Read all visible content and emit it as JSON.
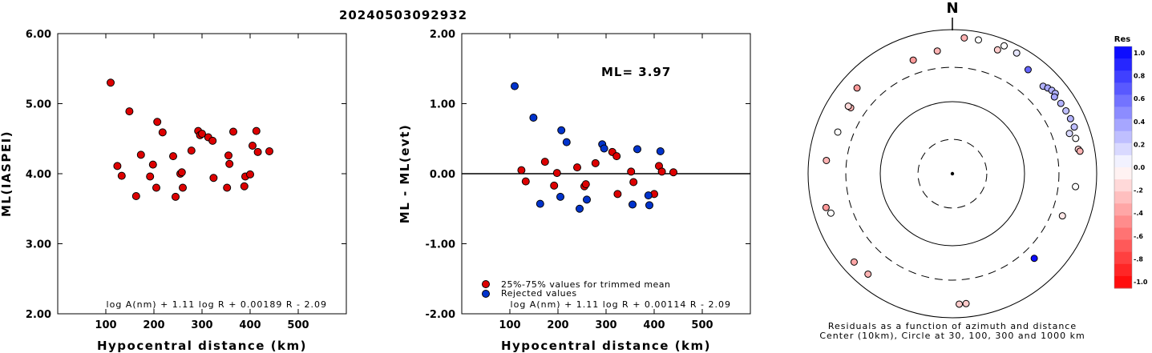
{
  "page_title": "20240503092932",
  "chart_data": [
    {
      "type": "scatter",
      "title": "",
      "xlabel": "Hypocentral distance (km)",
      "ylabel": "ML(IASPEI)",
      "xlim": [
        0,
        600
      ],
      "ylim": [
        2,
        6
      ],
      "xticks": [
        "100",
        "200",
        "300",
        "400",
        "500"
      ],
      "yticks": [
        "2.00",
        "3.00",
        "4.00",
        "5.00",
        "6.00"
      ],
      "formula": "log A(nm) + 1.11 log R + 0.00189 R - 2.09",
      "points_color": "#dd0000",
      "points": [
        [
          110,
          5.3
        ],
        [
          124,
          4.11
        ],
        [
          133,
          3.97
        ],
        [
          149,
          4.89
        ],
        [
          163,
          3.68
        ],
        [
          173,
          4.27
        ],
        [
          192,
          3.96
        ],
        [
          198,
          4.13
        ],
        [
          205,
          3.8
        ],
        [
          207,
          4.74
        ],
        [
          218,
          4.59
        ],
        [
          240,
          4.25
        ],
        [
          245,
          3.67
        ],
        [
          255,
          4.0
        ],
        [
          258,
          4.02
        ],
        [
          260,
          3.8
        ],
        [
          278,
          4.33
        ],
        [
          292,
          4.61
        ],
        [
          296,
          4.55
        ],
        [
          300,
          4.57
        ],
        [
          313,
          4.52
        ],
        [
          322,
          4.47
        ],
        [
          324,
          3.94
        ],
        [
          352,
          3.8
        ],
        [
          355,
          4.26
        ],
        [
          357,
          4.14
        ],
        [
          365,
          4.6
        ],
        [
          388,
          3.82
        ],
        [
          390,
          3.96
        ],
        [
          400,
          3.99
        ],
        [
          405,
          4.4
        ],
        [
          413,
          4.61
        ],
        [
          416,
          4.31
        ],
        [
          440,
          4.32
        ]
      ]
    },
    {
      "type": "scatter",
      "title": "",
      "xlabel": "Hypocentral distance (km)",
      "ylabel": "ML - ML(evt)",
      "xlim": [
        0,
        600
      ],
      "ylim": [
        -2,
        2
      ],
      "xticks": [
        "100",
        "200",
        "300",
        "400",
        "500"
      ],
      "yticks": [
        "-2.00",
        "-1.00",
        "0.00",
        "1.00",
        "2.00"
      ],
      "annotation": "ML= 3.97",
      "formula": "log A(nm) + 1.11 log R + 0.00114 R - 2.09",
      "legend": [
        {
          "label": "25%-75% values for trimmed mean",
          "color": "#dd0000"
        },
        {
          "label": "Rejected values",
          "color": "#0033cc"
        }
      ],
      "series": [
        {
          "name": "25%-75% values for trimmed mean",
          "color": "#dd0000",
          "points": [
            [
              124,
              0.05
            ],
            [
              133,
              -0.11
            ],
            [
              173,
              0.17
            ],
            [
              192,
              -0.17
            ],
            [
              198,
              0.01
            ],
            [
              240,
              0.09
            ],
            [
              255,
              -0.18
            ],
            [
              258,
              -0.15
            ],
            [
              278,
              0.15
            ],
            [
              313,
              0.31
            ],
            [
              322,
              0.25
            ],
            [
              324,
              -0.29
            ],
            [
              352,
              0.03
            ],
            [
              357,
              -0.12
            ],
            [
              400,
              -0.29
            ],
            [
              410,
              0.11
            ],
            [
              416,
              0.03
            ],
            [
              440,
              0.02
            ]
          ]
        },
        {
          "name": "Rejected values",
          "color": "#0033cc",
          "points": [
            [
              110,
              1.25
            ],
            [
              149,
              0.8
            ],
            [
              163,
              -0.43
            ],
            [
              205,
              -0.33
            ],
            [
              207,
              0.62
            ],
            [
              218,
              0.45
            ],
            [
              245,
              -0.5
            ],
            [
              260,
              -0.37
            ],
            [
              292,
              0.42
            ],
            [
              296,
              0.36
            ],
            [
              355,
              -0.44
            ],
            [
              365,
              0.35
            ],
            [
              388,
              -0.31
            ],
            [
              390,
              -0.45
            ],
            [
              413,
              0.32
            ]
          ]
        }
      ]
    },
    {
      "type": "scatter",
      "title": "N",
      "subtitle": "Residuals as a function of azimuth and distance",
      "caption": "Center (10km), Circle at 30, 100, 300 and 1000 km",
      "colorbar_title": "Res",
      "colorbar_ticks": [
        "1.0",
        "0.8",
        "0.6",
        "0.4",
        "0.2",
        "0.0",
        "-.2",
        "-.4",
        "-.6",
        "-.8",
        "-1.0"
      ],
      "colorbar_range": [
        -1,
        1
      ],
      "rings_km": [
        30,
        100,
        300,
        1000
      ],
      "points": [
        {
          "az": 5,
          "dist": 780,
          "res": -0.3
        },
        {
          "az": 11,
          "dist": 780,
          "res": 0.0
        },
        {
          "az": 20,
          "dist": 675,
          "res": -0.2
        },
        {
          "az": 28,
          "dist": 790,
          "res": 0.1
        },
        {
          "az": 22,
          "dist": 820,
          "res": 0.0
        },
        {
          "az": 36,
          "dist": 610,
          "res": 0.6
        },
        {
          "az": 46,
          "dist": 560,
          "res": 0.3
        },
        {
          "az": 48,
          "dist": 600,
          "res": 0.35
        },
        {
          "az": 50,
          "dist": 630,
          "res": 0.3
        },
        {
          "az": 52,
          "dist": 645,
          "res": 0.3
        },
        {
          "az": 53,
          "dist": 590,
          "res": 0.35
        },
        {
          "az": 57,
          "dist": 620,
          "res": 0.3
        },
        {
          "az": 61,
          "dist": 630,
          "res": 0.25
        },
        {
          "az": 65,
          "dist": 640,
          "res": 0.3
        },
        {
          "az": 69,
          "dist": 645,
          "res": 0.25
        },
        {
          "az": 74,
          "dist": 600,
          "res": 0.0
        },
        {
          "az": 71,
          "dist": 520,
          "res": 0.15
        },
        {
          "az": 79,
          "dist": 600,
          "res": -0.2
        },
        {
          "az": 80,
          "dist": 625,
          "res": -0.3
        },
        {
          "az": 96,
          "dist": 520,
          "res": 0.0
        },
        {
          "az": 111,
          "dist": 430,
          "res": -0.1
        },
        {
          "az": 136,
          "dist": 430,
          "res": 0.95
        },
        {
          "az": 174,
          "dist": 650,
          "res": -0.2
        },
        {
          "az": 177,
          "dist": 650,
          "res": -0.2
        },
        {
          "az": 220,
          "dist": 660,
          "res": -0.3
        },
        {
          "az": 228,
          "dist": 680,
          "res": -0.35
        },
        {
          "az": 252,
          "dist": 590,
          "res": 0.0
        },
        {
          "az": 255,
          "dist": 650,
          "res": -0.4
        },
        {
          "az": 276,
          "dist": 570,
          "res": -0.3
        },
        {
          "az": 290,
          "dist": 490,
          "res": 0.0
        },
        {
          "az": 303,
          "dist": 480,
          "res": -0.3
        },
        {
          "az": 303,
          "dist": 525,
          "res": -0.15
        },
        {
          "az": 312,
          "dist": 600,
          "res": -0.4
        },
        {
          "az": 341,
          "dist": 465,
          "res": -0.4
        },
        {
          "az": 353,
          "dist": 520,
          "res": -0.3
        }
      ]
    }
  ]
}
